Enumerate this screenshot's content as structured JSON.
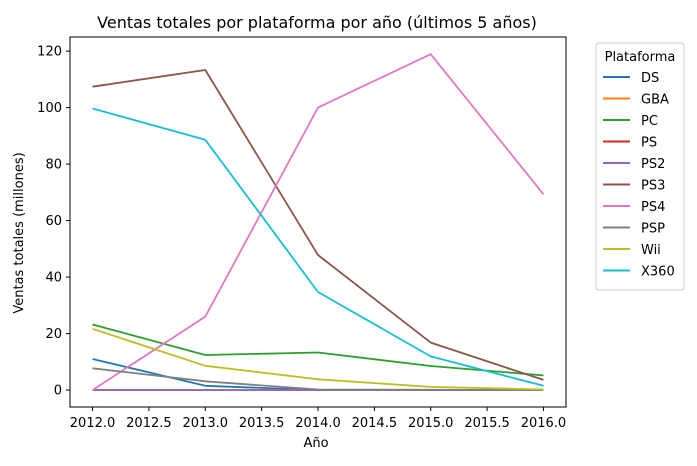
{
  "chart_data": {
    "type": "line",
    "title": "Ventas totales por plataforma por año (últimos 5 años)",
    "xlabel": "Año",
    "ylabel": "Ventas totales (millones)",
    "xlim": [
      2011.8,
      2016.2
    ],
    "ylim": [
      -6,
      125
    ],
    "xticks": [
      2012.0,
      2012.5,
      2013.0,
      2013.5,
      2014.0,
      2014.5,
      2015.0,
      2015.5,
      2016.0
    ],
    "xtick_labels": [
      "2012.0",
      "2012.5",
      "2013.0",
      "2013.5",
      "2014.0",
      "2014.5",
      "2015.0",
      "2015.5",
      "2016.0"
    ],
    "yticks": [
      0,
      20,
      40,
      60,
      80,
      100,
      120
    ],
    "ytick_labels": [
      "0",
      "20",
      "40",
      "60",
      "80",
      "100",
      "120"
    ],
    "grid": false,
    "legend": {
      "title": "Plataforma",
      "placement": "outside-right"
    },
    "x": [
      2012,
      2013,
      2014,
      2015,
      2016
    ],
    "series": [
      {
        "name": "DS",
        "color": "#1f77b4",
        "values": [
          11.0,
          1.5,
          0.0,
          0.0,
          0.0
        ]
      },
      {
        "name": "GBA",
        "color": "#ff7f0e",
        "values": [
          0.0,
          0.0,
          0.0,
          0.0,
          0.0
        ]
      },
      {
        "name": "PC",
        "color": "#2ca02c",
        "values": [
          23.2,
          12.4,
          13.3,
          8.5,
          5.2
        ]
      },
      {
        "name": "PS",
        "color": "#d62728",
        "values": [
          0.0,
          0.0,
          0.0,
          0.0,
          0.0
        ]
      },
      {
        "name": "PS2",
        "color": "#9467bd",
        "values": [
          0.0,
          0.0,
          0.0,
          0.0,
          0.0
        ]
      },
      {
        "name": "PS3",
        "color": "#8c564b",
        "values": [
          107.4,
          113.3,
          47.8,
          16.8,
          3.6
        ]
      },
      {
        "name": "PS4",
        "color": "#e377c2",
        "values": [
          0.0,
          25.99,
          100.0,
          118.9,
          69.3
        ]
      },
      {
        "name": "PSP",
        "color": "#7f7f7f",
        "values": [
          7.7,
          3.1,
          0.2,
          0.1,
          0.0
        ]
      },
      {
        "name": "Wii",
        "color": "#bcbd22",
        "values": [
          21.7,
          8.6,
          3.8,
          1.1,
          0.2
        ]
      },
      {
        "name": "X360",
        "color": "#17becf",
        "values": [
          99.7,
          88.6,
          34.7,
          11.9,
          1.5
        ]
      }
    ]
  }
}
